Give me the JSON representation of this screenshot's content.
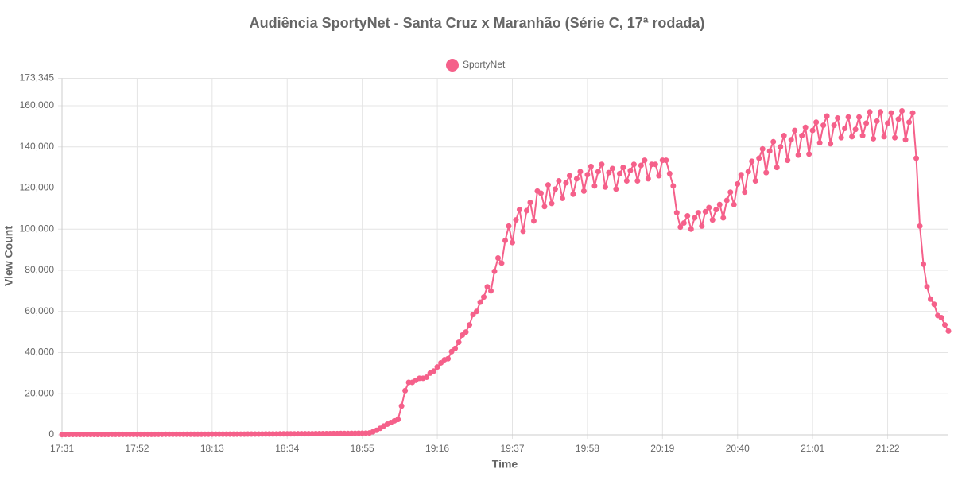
{
  "chart_data": {
    "type": "line",
    "title": "Audiência SportyNet - Santa Cruz x Maranhão (Série C, 17ª rodada)",
    "x_label": "Time",
    "y_label": "View Count",
    "categories": [
      "17:31",
      null,
      null,
      null,
      null,
      null,
      null,
      null,
      null,
      null,
      null,
      null,
      null,
      null,
      null,
      null,
      null,
      null,
      null,
      null,
      null,
      "17:52",
      null,
      null,
      null,
      null,
      null,
      null,
      null,
      null,
      null,
      null,
      null,
      null,
      null,
      null,
      null,
      null,
      null,
      null,
      null,
      null,
      "18:13",
      null,
      null,
      null,
      null,
      null,
      null,
      null,
      null,
      null,
      null,
      null,
      null,
      null,
      null,
      null,
      null,
      null,
      null,
      null,
      null,
      "18:34",
      null,
      null,
      null,
      null,
      null,
      null,
      null,
      null,
      null,
      null,
      null,
      null,
      null,
      null,
      null,
      null,
      null,
      null,
      null,
      null,
      "18:55",
      null,
      null,
      null,
      null,
      null,
      null,
      null,
      null,
      null,
      null,
      null,
      null,
      null,
      null,
      null,
      null,
      null,
      null,
      null,
      null,
      "19:16",
      null,
      null,
      null,
      null,
      null,
      null,
      null,
      null,
      null,
      null,
      null,
      null,
      null,
      null,
      null,
      null,
      null,
      null,
      null,
      null,
      "19:37",
      null,
      null,
      null,
      null,
      null,
      null,
      null,
      null,
      null,
      null,
      null,
      null,
      null,
      null,
      null,
      null,
      null,
      null,
      null,
      null,
      "19:58",
      null,
      null,
      null,
      null,
      null,
      null,
      null,
      null,
      null,
      null,
      null,
      null,
      null,
      null,
      null,
      null,
      null,
      null,
      null,
      null,
      "20:19",
      null,
      null,
      null,
      null,
      null,
      null,
      null,
      null,
      null,
      null,
      null,
      null,
      null,
      null,
      null,
      null,
      null,
      null,
      null,
      null,
      "20:40",
      null,
      null,
      null,
      null,
      null,
      null,
      null,
      null,
      null,
      null,
      null,
      null,
      null,
      null,
      null,
      null,
      null,
      null,
      null,
      null,
      "21:01",
      null,
      null,
      null,
      null,
      null,
      null,
      null,
      null,
      null,
      null,
      null,
      null,
      null,
      null,
      null,
      null,
      null,
      null,
      null,
      null,
      "21:22",
      null,
      null,
      null,
      null,
      null,
      null,
      null,
      null,
      null,
      null,
      null,
      null,
      null,
      null,
      null,
      null,
      null
    ],
    "series": [
      {
        "name": "SportyNet",
        "color": "#f5608a",
        "values": [
          150,
          160,
          170,
          170,
          180,
          180,
          190,
          190,
          200,
          200,
          200,
          210,
          210,
          210,
          220,
          220,
          220,
          230,
          230,
          230,
          240,
          240,
          240,
          250,
          250,
          250,
          260,
          260,
          260,
          270,
          270,
          270,
          280,
          280,
          280,
          290,
          290,
          300,
          300,
          300,
          310,
          310,
          320,
          320,
          330,
          330,
          340,
          340,
          350,
          350,
          360,
          360,
          370,
          380,
          390,
          400,
          410,
          420,
          430,
          440,
          450,
          460,
          470,
          480,
          490,
          500,
          510,
          520,
          530,
          540,
          550,
          560,
          570,
          580,
          590,
          600,
          620,
          640,
          660,
          680,
          700,
          720,
          740,
          760,
          780,
          800,
          900,
          1500,
          2200,
          3200,
          4300,
          5200,
          6000,
          6800,
          7500,
          14000,
          21500,
          25500,
          25500,
          26500,
          27500,
          27500,
          28000,
          30000,
          31000,
          33000,
          35000,
          36500,
          37000,
          40500,
          42000,
          45000,
          48500,
          50000,
          53500,
          58500,
          60000,
          64500,
          67000,
          72000,
          70000,
          79500,
          86000,
          83500,
          94500,
          101500,
          93500,
          104500,
          109500,
          99000,
          109000,
          113000,
          104000,
          118500,
          117500,
          111000,
          121500,
          112500,
          119500,
          123500,
          115000,
          122500,
          126000,
          117000,
          124500,
          128000,
          118500,
          126500,
          130500,
          121000,
          128000,
          131500,
          120500,
          127500,
          129500,
          119500,
          127000,
          130000,
          123500,
          128500,
          131500,
          123500,
          131000,
          133500,
          124500,
          131500,
          131500,
          126000,
          133500,
          133500,
          127000,
          121000,
          108000,
          101000,
          103000,
          106500,
          100000,
          105500,
          108000,
          101500,
          108500,
          110500,
          104500,
          109500,
          112000,
          105500,
          114000,
          118000,
          112000,
          122000,
          126500,
          118000,
          128000,
          133000,
          123500,
          134500,
          139000,
          127500,
          138000,
          142500,
          130000,
          140000,
          145500,
          133500,
          143500,
          148000,
          136000,
          145500,
          149500,
          136500,
          148000,
          152000,
          142000,
          150500,
          155000,
          141500,
          150500,
          154000,
          144500,
          149000,
          154500,
          145000,
          148500,
          154500,
          145500,
          151500,
          157000,
          144000,
          152500,
          157000,
          145000,
          151500,
          156500,
          144500,
          153500,
          157500,
          143500,
          152000,
          156500,
          134500,
          101500,
          83000,
          72000,
          66000,
          63500,
          58000,
          57000,
          53500,
          50500
        ]
      }
    ],
    "ylim": [
      0,
      173345
    ],
    "yticks": [
      0,
      {
        "value": 20000,
        "label": "20,000"
      },
      {
        "value": 40000,
        "label": "40,000"
      },
      {
        "value": 60000,
        "label": "60,000"
      },
      {
        "value": 80000,
        "label": "80,000"
      },
      {
        "value": 100000,
        "label": "100,000"
      },
      {
        "value": 120000,
        "label": "120,000"
      },
      {
        "value": 140000,
        "label": "140,000"
      },
      {
        "value": 160000,
        "label": "160,000"
      },
      {
        "value": 173345,
        "label": "173,345"
      }
    ],
    "grid": true,
    "legend": "top"
  }
}
